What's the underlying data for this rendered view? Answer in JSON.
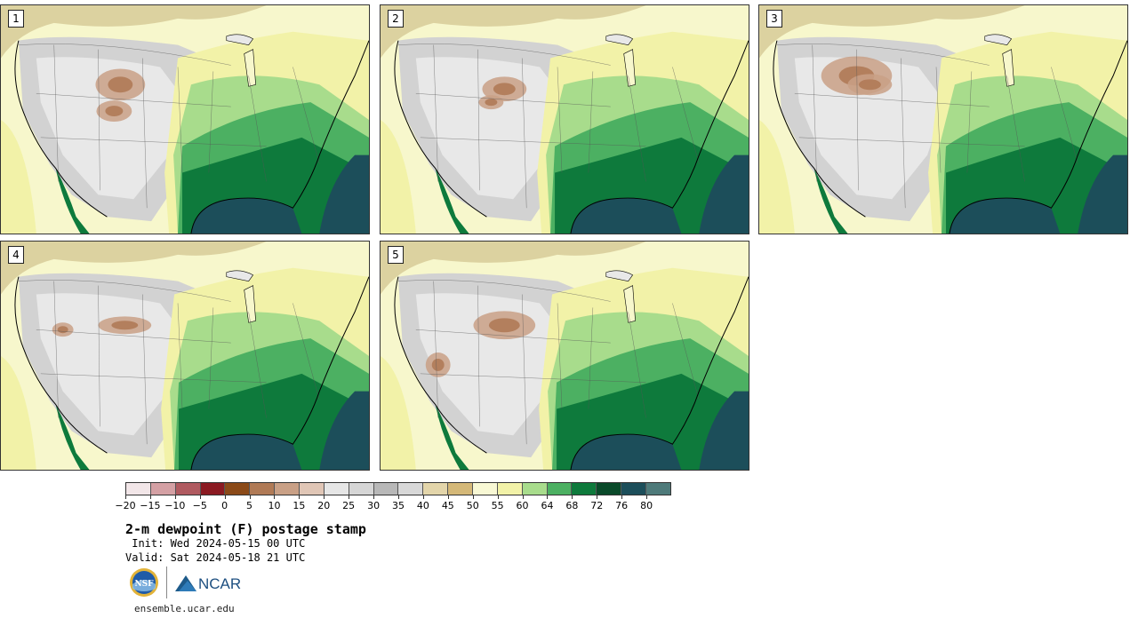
{
  "panels": [
    {
      "label": "1"
    },
    {
      "label": "2"
    },
    {
      "label": "3"
    },
    {
      "label": "4"
    },
    {
      "label": "5"
    }
  ],
  "colorbar": {
    "colors": [
      "#f2e6e8",
      "#d4a0a4",
      "#b05a60",
      "#8b1a22",
      "#8b4a18",
      "#b07a56",
      "#c9a086",
      "#e0c6b6",
      "#e6e6e6",
      "#d6d6d6",
      "#b8b8b8",
      "#d8d8d8",
      "#e3d5aa",
      "#d4b878",
      "#f8f8d4",
      "#f2f2a8",
      "#a8dc8c",
      "#4cb062",
      "#0e7a3c",
      "#0a4a2a",
      "#1c4e5a",
      "#4e7a7a"
    ],
    "tick_labels": [
      "−20",
      "−15",
      "−10",
      "−5",
      "0",
      "5",
      "10",
      "15",
      "20",
      "25",
      "30",
      "35",
      "40",
      "45",
      "50",
      "55",
      "60",
      "64",
      "68",
      "72",
      "76",
      "80"
    ]
  },
  "title": "2-m dewpoint (F) postage stamp",
  "init_line": " Init: Wed 2024-05-15 00 UTC",
  "valid_line": "Valid: Sat 2024-05-18 21 UTC",
  "logos": {
    "nsf_text": "NSF",
    "ncar_text": "NCAR"
  },
  "footer_url": "ensemble.ucar.edu"
}
